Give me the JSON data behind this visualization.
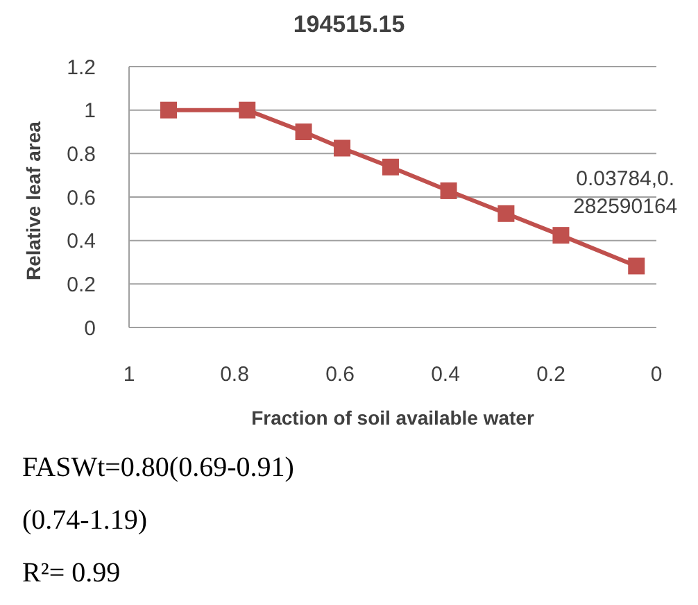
{
  "chart_data": {
    "type": "line",
    "title": "194515.15",
    "xlabel": "Fraction of soil available water",
    "ylabel": "Relative leaf area",
    "x": [
      0.925,
      0.776,
      0.669,
      0.596,
      0.504,
      0.394,
      0.285,
      0.181,
      0.03784
    ],
    "series": [
      {
        "color": "#c0504d",
        "values": [
          1.0,
          1.0,
          0.9,
          0.825,
          0.738,
          0.629,
          0.524,
          0.424,
          0.282590164
        ]
      }
    ],
    "xlim": [
      1,
      0
    ],
    "xticks": [
      1,
      0.8,
      0.6,
      0.4,
      0.2,
      0
    ],
    "ylim": [
      0,
      1.2
    ],
    "yticks": [
      0,
      0.2,
      0.4,
      0.6,
      0.8,
      1,
      1.2
    ],
    "grid": "y",
    "marker": "square",
    "line_style": "solid",
    "annotations": [
      {
        "text": "0.03784,0.282590164",
        "x": 0.03784,
        "y": 0.282590164
      },
      "FASWt=0.80(0.69-0.91)",
      "(0.74-1.19)",
      "R²= 0.99"
    ]
  }
}
